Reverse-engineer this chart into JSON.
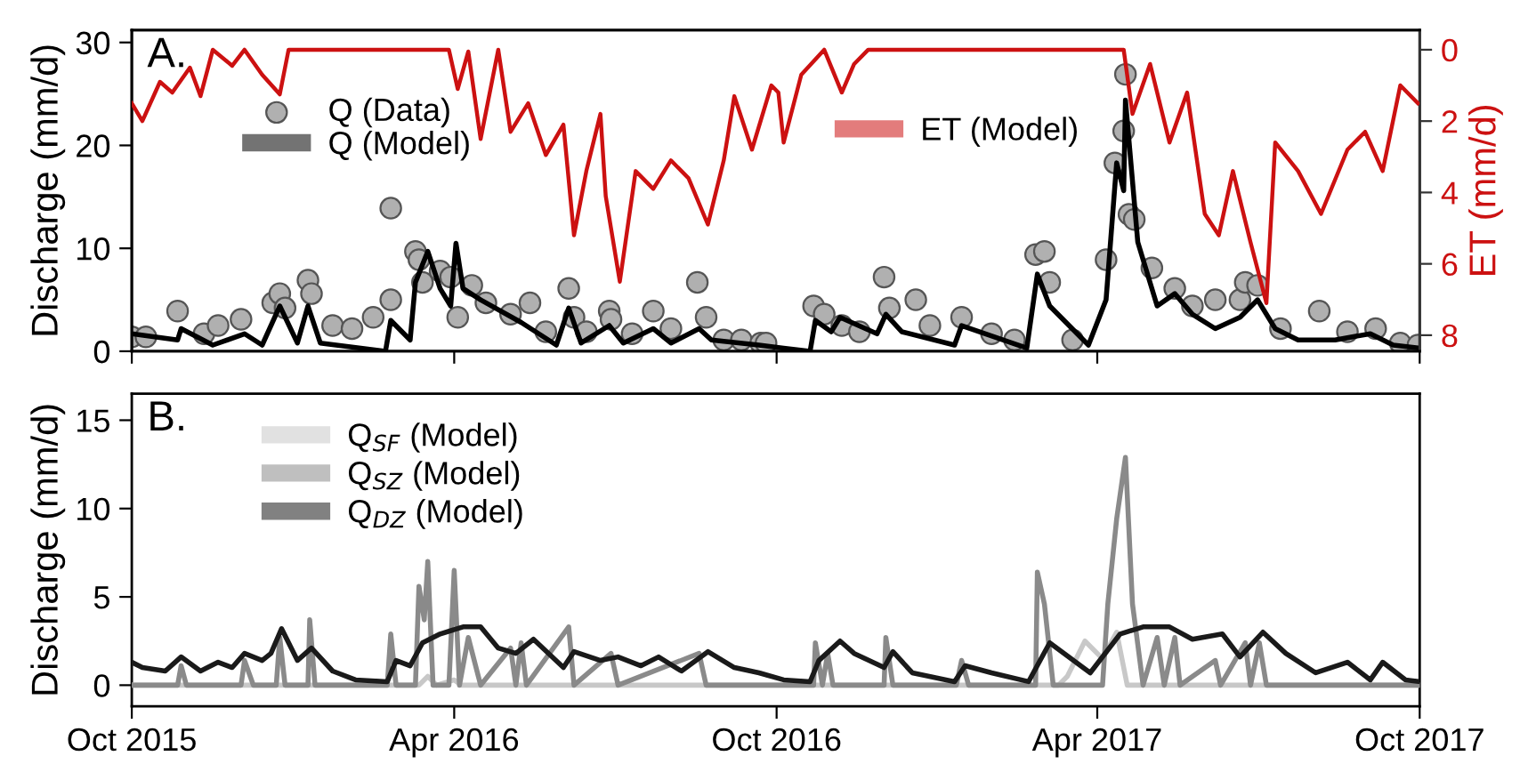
{
  "chart_data": [
    {
      "type": "line",
      "title": "A.",
      "ylabel": "Discharge (mm/d)",
      "y2label": "ET (mm/d)",
      "xlim": [
        "2015-10-01",
        "2017-10-01"
      ],
      "xticks": [
        {
          "value": "2015-10-01",
          "label": null
        },
        {
          "value": "2016-04-01",
          "label": null
        },
        {
          "value": "2016-10-01",
          "label": null
        },
        {
          "value": "2017-04-01",
          "label": null
        },
        {
          "value": "2017-10-01",
          "label": null
        }
      ],
      "ylim": [
        0,
        31.2
      ],
      "yticks": [
        0,
        10,
        20,
        30
      ],
      "y2lim": [
        8.45,
        -0.55
      ],
      "y2ticks": [
        0,
        2,
        4,
        6,
        8
      ],
      "tick_labels": "y",
      "grid": false,
      "legend": "top left",
      "series": [
        {
          "name": "Q (Data)",
          "type": "scatter",
          "marker": "circle",
          "color": "#b0b0b0",
          "x": [
            "2015-10-01",
            "2015-10-09",
            "2015-10-27",
            "2015-11-11",
            "2015-11-19",
            "2015-12-02",
            "2015-12-20",
            "2015-12-24",
            "2015-12-27",
            "2016-01-09",
            "2016-01-11",
            "2016-01-23",
            "2016-02-03",
            "2016-02-15",
            "2016-02-25",
            "2016-02-25",
            "2016-03-10",
            "2016-03-12",
            "2016-03-14",
            "2016-03-24",
            "2016-03-30",
            "2016-04-03",
            "2016-04-11",
            "2016-04-19",
            "2016-05-03",
            "2016-05-14",
            "2016-05-23",
            "2016-06-05",
            "2016-06-08",
            "2016-06-15",
            "2016-06-28",
            "2016-06-29",
            "2016-07-11",
            "2016-07-23",
            "2016-08-02",
            "2016-08-17",
            "2016-08-22",
            "2016-09-01",
            "2016-09-11",
            "2016-09-22",
            "2016-09-25",
            "2016-10-22",
            "2016-10-28",
            "2016-11-07",
            "2016-11-17",
            "2016-12-01",
            "2016-12-04",
            "2016-12-19",
            "2016-12-27",
            "2017-01-14",
            "2017-01-31",
            "2017-02-13",
            "2017-02-25",
            "2017-03-02",
            "2017-03-05",
            "2017-03-18",
            "2017-04-06",
            "2017-04-11",
            "2017-04-16",
            "2017-04-17",
            "2017-04-19",
            "2017-04-22",
            "2017-05-02",
            "2017-05-15",
            "2017-05-25",
            "2017-06-07",
            "2017-06-21",
            "2017-06-24",
            "2017-07-01",
            "2017-07-14",
            "2017-08-05",
            "2017-08-21",
            "2017-09-06",
            "2017-09-20",
            "2017-09-30"
          ],
          "values": [
            1.4,
            1.4,
            3.9,
            1.7,
            2.5,
            3.1,
            4.7,
            5.6,
            4.2,
            6.9,
            5.6,
            2.5,
            2.2,
            3.3,
            13.9,
            5,
            9.7,
            8.9,
            6.7,
            7.8,
            7.2,
            3.3,
            6.4,
            4.7,
            3.6,
            4.7,
            1.9,
            6.1,
            3.3,
            1.9,
            3.9,
            3.1,
            1.7,
            3.9,
            2.2,
            6.7,
            3.3,
            1.1,
            1.1,
            0.8,
            0.8,
            4.4,
            3.6,
            2.5,
            1.9,
            7.2,
            4.2,
            5,
            2.5,
            3.3,
            1.7,
            1.1,
            9.4,
            9.7,
            6.7,
            1.1,
            8.9,
            18.3,
            21.4,
            26.9,
            13.3,
            12.8,
            8.1,
            6.1,
            4.4,
            5,
            5,
            6.7,
            6.4,
            2.2,
            3.9,
            1.9,
            2.2,
            0.8,
            0.6
          ]
        },
        {
          "name": "Q (Model)",
          "color": "#000000",
          "x": [
            "2015-10-01",
            "2015-10-27",
            "2015-10-29",
            "2015-11-16",
            "2015-12-04",
            "2015-12-14",
            "2015-12-24",
            "2016-01-03",
            "2016-01-09",
            "2016-01-16",
            "2016-02-22",
            "2016-02-25",
            "2016-03-07",
            "2016-03-10",
            "2016-03-17",
            "2016-03-24",
            "2016-03-30",
            "2016-04-02",
            "2016-04-06",
            "2016-04-16",
            "2016-05-09",
            "2016-05-29",
            "2016-06-05",
            "2016-06-12",
            "2016-06-28",
            "2016-07-06",
            "2016-07-23",
            "2016-08-02",
            "2016-08-18",
            "2016-08-25",
            "2016-09-21",
            "2016-10-05",
            "2016-10-20",
            "2016-10-23",
            "2016-11-01",
            "2016-11-06",
            "2016-11-27",
            "2016-12-02",
            "2016-12-11",
            "2017-01-10",
            "2017-01-14",
            "2017-02-20",
            "2017-02-26",
            "2017-03-05",
            "2017-03-27",
            "2017-04-06",
            "2017-04-12",
            "2017-04-16",
            "2017-04-17",
            "2017-04-24",
            "2017-05-05",
            "2017-05-15",
            "2017-05-25",
            "2017-06-07",
            "2017-06-21",
            "2017-07-01",
            "2017-07-11",
            "2017-07-24",
            "2017-08-14",
            "2017-09-03",
            "2017-09-16",
            "2017-10-01"
          ],
          "values": [
            1.7,
            1.1,
            2.2,
            0.6,
            1.7,
            0.6,
            4.4,
            0.8,
            4.4,
            0.8,
            0,
            3,
            1.1,
            6.7,
            9.7,
            6.1,
            4.4,
            10.5,
            6.1,
            5,
            2.8,
            0.6,
            4.2,
            0.8,
            2.5,
            0.8,
            2.2,
            0.8,
            2.2,
            1.1,
            0.6,
            0.3,
            0,
            3,
            1.9,
            3.3,
            1.7,
            3.6,
            1.9,
            0.6,
            2.5,
            0.3,
            7.5,
            4.4,
            0.6,
            5,
            18.3,
            15.6,
            24.4,
            10.6,
            4.4,
            5.6,
            3.6,
            2.2,
            3.3,
            5,
            2.2,
            1.1,
            1.1,
            1.7,
            0.6,
            0.3
          ]
        },
        {
          "name": "ET (Model)",
          "axis": "y2",
          "color": "#cc1111",
          "x": [
            "2015-10-01",
            "2015-10-07",
            "2015-10-17",
            "2015-10-24",
            "2015-11-03",
            "2015-11-09",
            "2015-11-16",
            "2015-11-27",
            "2015-12-04",
            "2015-12-14",
            "2015-12-24",
            "2015-12-29",
            "2016-03-29",
            "2016-04-03",
            "2016-04-09",
            "2016-04-16",
            "2016-04-26",
            "2016-05-03",
            "2016-05-13",
            "2016-05-23",
            "2016-06-02",
            "2016-06-08",
            "2016-06-15",
            "2016-06-23",
            "2016-06-26",
            "2016-07-04",
            "2016-07-13",
            "2016-07-23",
            "2016-08-02",
            "2016-08-12",
            "2016-08-23",
            "2016-09-01",
            "2016-09-07",
            "2016-09-17",
            "2016-09-28",
            "2016-10-02",
            "2016-10-05",
            "2016-10-15",
            "2016-10-28",
            "2016-11-07",
            "2016-11-14",
            "2016-11-22",
            "2017-04-16",
            "2017-04-21",
            "2017-05-01",
            "2017-05-12",
            "2017-05-22",
            "2017-06-01",
            "2017-06-09",
            "2017-06-17",
            "2017-06-27",
            "2017-07-06",
            "2017-07-11",
            "2017-07-24",
            "2017-08-06",
            "2017-08-21",
            "2017-08-31",
            "2017-09-10",
            "2017-09-20",
            "2017-09-30"
          ],
          "values": [
            1.5,
            2.0,
            0.9,
            1.2,
            0.5,
            1.3,
            0,
            0.45,
            0,
            0.7,
            1.25,
            0,
            0,
            1.1,
            0.05,
            2.5,
            0,
            2.3,
            1.5,
            2.95,
            2.1,
            5.2,
            3.4,
            1.8,
            4.1,
            6.5,
            3.4,
            3.9,
            3.1,
            3.6,
            4.9,
            3.1,
            1.3,
            2.8,
            1.0,
            1.2,
            2.6,
            0.7,
            0,
            1.2,
            0.4,
            0,
            0,
            1.8,
            0.4,
            2.6,
            1.2,
            4.6,
            5.2,
            3.4,
            5.4,
            7.1,
            2.6,
            3.4,
            4.6,
            2.8,
            2.3,
            3.4,
            1.0,
            1.5
          ]
        }
      ]
    },
    {
      "type": "line",
      "title": "B.",
      "ylabel": "Discharge (mm/d)",
      "xlim": [
        "2015-10-01",
        "2017-10-01"
      ],
      "xticks": [
        {
          "value": "2015-10-01",
          "label": "Oct 2015"
        },
        {
          "value": "2016-04-01",
          "label": "Apr 2016"
        },
        {
          "value": "2016-10-01",
          "label": "Oct 2016"
        },
        {
          "value": "2017-04-01",
          "label": "Apr 2017"
        },
        {
          "value": "2017-10-01",
          "label": "Oct 2017"
        }
      ],
      "ylim": [
        -1.2,
        16.5
      ],
      "yticks": [
        0,
        5,
        10,
        15
      ],
      "grid": false,
      "legend": "top left",
      "series": [
        {
          "name": "Q$_{SF}$ (Model)",
          "color": "#c8c8c8",
          "x": [
            "2015-10-01",
            "2016-03-12",
            "2016-03-17",
            "2016-03-22",
            "2016-04-01",
            "2016-04-05",
            "2017-03-10",
            "2017-03-15",
            "2017-03-25",
            "2017-04-04",
            "2017-04-12",
            "2017-04-18",
            "2017-10-01"
          ],
          "values": [
            0,
            0,
            0.5,
            0,
            0.3,
            0,
            0,
            0.5,
            2.5,
            1.5,
            3.0,
            0,
            0
          ]
        },
        {
          "name": "Q$_{SZ}$ (Model)",
          "color": "#8a8a8a",
          "x": [
            "2015-10-01",
            "2015-10-27",
            "2015-10-29",
            "2015-11-01",
            "2015-12-02",
            "2015-12-04",
            "2015-12-09",
            "2015-12-22",
            "2015-12-24",
            "2015-12-27",
            "2016-01-09",
            "2016-01-10",
            "2016-01-13",
            "2016-02-23",
            "2016-02-25",
            "2016-02-28",
            "2016-03-10",
            "2016-03-12",
            "2016-03-15",
            "2016-03-17",
            "2016-03-20",
            "2016-03-29",
            "2016-04-01",
            "2016-04-04",
            "2016-04-09",
            "2016-04-16",
            "2016-05-03",
            "2016-05-06",
            "2016-05-09",
            "2016-05-12",
            "2016-06-05",
            "2016-06-08",
            "2016-06-29",
            "2016-07-03",
            "2016-08-18",
            "2016-08-22",
            "2016-10-22",
            "2016-10-23",
            "2016-10-27",
            "2016-10-30",
            "2016-11-02",
            "2016-12-01",
            "2016-12-02",
            "2016-12-06",
            "2017-01-11",
            "2017-01-14",
            "2017-01-18",
            "2017-02-25",
            "2017-02-26",
            "2017-03-02",
            "2017-03-07",
            "2017-04-04",
            "2017-04-07",
            "2017-04-12",
            "2017-04-17",
            "2017-04-21",
            "2017-04-27",
            "2017-05-05",
            "2017-05-09",
            "2017-05-15",
            "2017-05-18",
            "2017-06-07",
            "2017-06-10",
            "2017-06-24",
            "2017-06-27",
            "2017-07-02",
            "2017-07-06",
            "2017-10-01"
          ],
          "values": [
            0,
            0,
            1.1,
            0,
            0,
            1.4,
            0,
            0,
            2.7,
            0,
            0,
            3.7,
            0,
            0,
            2.9,
            0,
            0,
            5.6,
            3.7,
            7.0,
            0,
            0,
            6.5,
            0,
            2.7,
            0,
            2.1,
            0,
            2.4,
            0,
            3.3,
            0,
            1.8,
            0,
            1.8,
            0,
            0,
            2.4,
            0,
            1.8,
            0,
            0,
            2.7,
            0,
            0,
            1.4,
            0,
            0,
            6.4,
            4.6,
            0,
            0,
            4.6,
            9.4,
            12.9,
            4.6,
            0,
            2.7,
            0,
            2.7,
            0,
            1.4,
            0,
            2.4,
            0,
            2.4,
            0,
            0
          ]
        },
        {
          "name": "Q$_{DZ}$ (Model)",
          "color": "#1a1a1a",
          "x": [
            "2015-10-01",
            "2015-10-07",
            "2015-10-20",
            "2015-10-29",
            "2015-11-09",
            "2015-11-19",
            "2015-11-27",
            "2015-12-04",
            "2015-12-14",
            "2015-12-19",
            "2015-12-25",
            "2016-01-03",
            "2016-01-11",
            "2016-01-23",
            "2016-02-05",
            "2016-02-23",
            "2016-02-28",
            "2016-03-07",
            "2016-03-14",
            "2016-03-24",
            "2016-04-06",
            "2016-04-16",
            "2016-04-26",
            "2016-05-06",
            "2016-05-16",
            "2016-06-02",
            "2016-06-08",
            "2016-06-23",
            "2016-07-03",
            "2016-07-16",
            "2016-07-26",
            "2016-08-08",
            "2016-08-23",
            "2016-09-07",
            "2016-09-21",
            "2016-10-05",
            "2016-10-20",
            "2016-10-25",
            "2016-11-06",
            "2016-11-14",
            "2016-12-01",
            "2016-12-06",
            "2016-12-17",
            "2017-01-10",
            "2017-01-16",
            "2017-01-31",
            "2017-02-21",
            "2017-03-05",
            "2017-03-28",
            "2017-04-14",
            "2017-04-27",
            "2017-05-12",
            "2017-05-25",
            "2017-06-11",
            "2017-06-21",
            "2017-07-04",
            "2017-07-17",
            "2017-08-03",
            "2017-08-21",
            "2017-09-03",
            "2017-09-10",
            "2017-09-23",
            "2017-10-01"
          ],
          "values": [
            1.3,
            1.0,
            0.8,
            1.6,
            0.8,
            1.3,
            1.0,
            1.8,
            1.4,
            1.8,
            3.2,
            1.4,
            2.1,
            0.8,
            0.3,
            0.2,
            1.4,
            1.1,
            2.4,
            2.9,
            3.3,
            3.3,
            2.1,
            1.8,
            2.6,
            1.0,
            1.9,
            1.4,
            1.6,
            1.1,
            1.6,
            0.8,
            1.9,
            1.0,
            0.7,
            0.3,
            0.2,
            1.4,
            2.5,
            1.8,
            1.0,
            1.9,
            0.7,
            0.2,
            1.1,
            0.7,
            0.2,
            2.4,
            0.7,
            2.9,
            3.3,
            3.3,
            2.6,
            2.9,
            1.6,
            3.0,
            1.8,
            0.7,
            1.3,
            0.3,
            1.3,
            0.3,
            0.2
          ]
        }
      ]
    }
  ]
}
